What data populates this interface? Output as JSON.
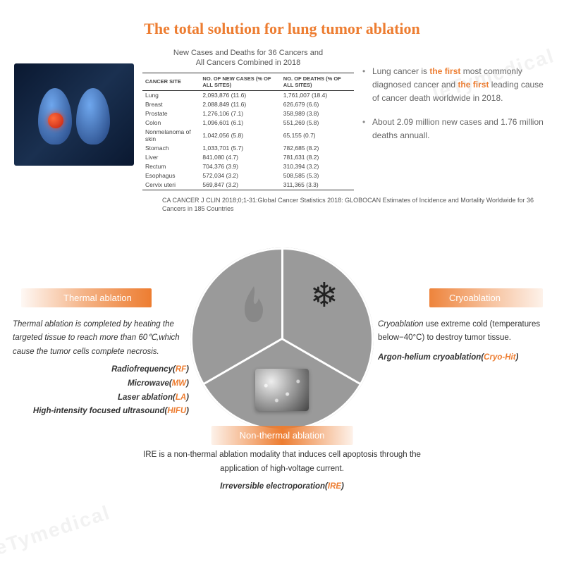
{
  "title": {
    "text": "The total solution for lung tumor ablation",
    "color": "#ed7d31"
  },
  "table": {
    "caption_line1": "New Cases and Deaths for 36 Cancers and",
    "caption_line2": "All Cancers Combined in 2018",
    "columns": [
      "CANCER SITE",
      "NO. OF NEW CASES (% OF ALL SITES)",
      "NO. OF DEATHS (% OF ALL SITES)"
    ],
    "rows": [
      [
        "Lung",
        "2,093,876 (11.6)",
        "1,761,007 (18.4)"
      ],
      [
        "Breast",
        "2,088,849 (11.6)",
        "626,679 (6.6)"
      ],
      [
        "Prostate",
        "1,276,106 (7.1)",
        "358,989 (3.8)"
      ],
      [
        "Colon",
        "1,096,601 (6.1)",
        "551,269 (5.8)"
      ],
      [
        "Nonmelanoma of skin",
        "1,042,056 (5.8)",
        "65,155 (0.7)"
      ],
      [
        "Stomach",
        "1,033,701 (5.7)",
        "782,685 (8.2)"
      ],
      [
        "Liver",
        "841,080 (4.7)",
        "781,631 (8.2)"
      ],
      [
        "Rectum",
        "704,376 (3.9)",
        "310,394 (3.2)"
      ],
      [
        "Esophagus",
        "572,034 (3.2)",
        "508,585 (5.3)"
      ],
      [
        "Cervix uteri",
        "569,847 (3.2)",
        "311,365 (3.3)"
      ]
    ]
  },
  "bullets": {
    "b1_pre": "Lung cancer is ",
    "b1_em1": "the first",
    "b1_mid": " most commonly diagnosed cancer and ",
    "b1_em2": "the first",
    "b1_post": " leading cause of cancer death worldwide in 2018.",
    "b2": "About 2.09 million new cases and 1.76 million deaths annuall."
  },
  "citation": "CA CANCER J CLIN 2018;0;1-31:Global Cancer Statistics 2018: GLOBOCAN Estimates of Incidence and Mortality Worldwide for 36 Cancers in 185 Countries",
  "sections": {
    "thermal": {
      "label": "Thermal ablation",
      "desc": "Thermal ablation is completed by heating the targeted tissue to reach more than 60℃,which cause the tumor cells complete necrosis.",
      "techs": [
        {
          "name": "Radiofrequency",
          "abbr": "RF"
        },
        {
          "name": "Microwave",
          "abbr": "MW"
        },
        {
          "name": "Laser ablation",
          "abbr": "LA"
        },
        {
          "name": "High-intensity focused ultrasound",
          "abbr": "HIFU"
        }
      ]
    },
    "cryo": {
      "label": "Cryoablation",
      "desc_pre": "Cryoablation",
      "desc_post": " use extreme cold (temperatures below−40°C) to destroy tumor tissue.",
      "tech_name": "Argon-helium cryoablation",
      "tech_abbr": "Cryo-Hit"
    },
    "nonthermal": {
      "label": "Non-thermal ablation",
      "desc": "IRE is a non-thermal ablation modality that induces cell apoptosis through the application of high-voltage current.",
      "tech_name": "Irreversible electroporation",
      "tech_abbr": "IRE"
    }
  },
  "colors": {
    "accent": "#ed7d31",
    "text": "#444444",
    "circle": "#9a9a9a"
  },
  "watermark": "leTymedical"
}
